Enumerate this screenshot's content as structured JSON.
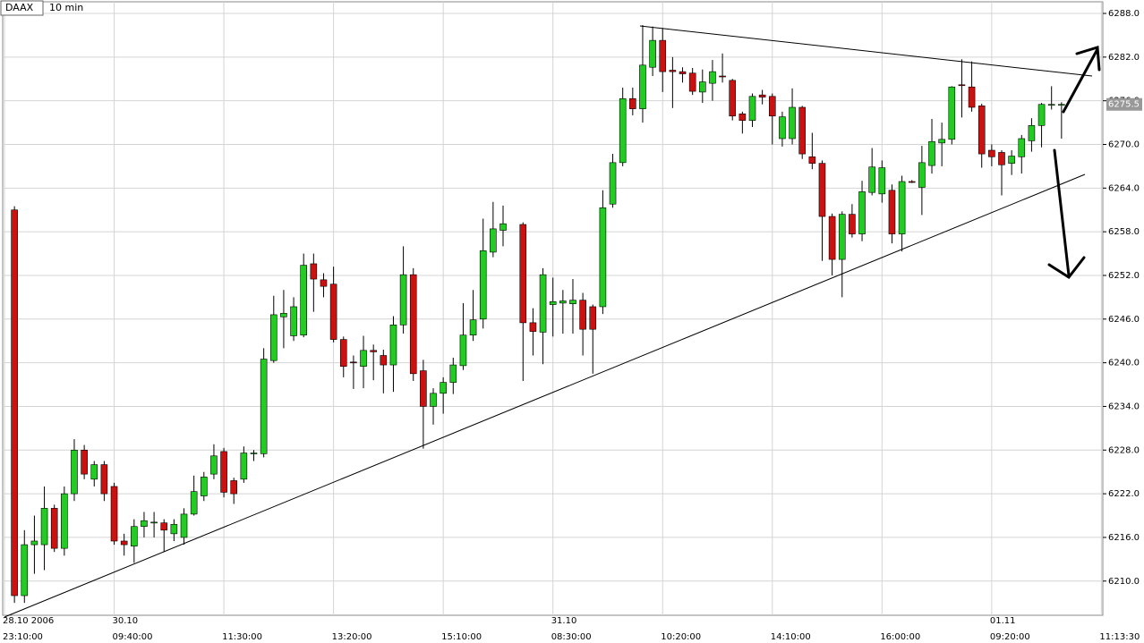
{
  "header": {
    "symbol": "DAAX",
    "interval": "10 min"
  },
  "chart_data": {
    "type": "candlestick",
    "categories": [
      "23:10:00",
      null,
      null,
      null,
      null,
      null,
      null,
      null,
      null,
      null,
      null,
      "09:40:00",
      null,
      null,
      null,
      null,
      null,
      null,
      null,
      null,
      null,
      null,
      "11:30:00",
      null,
      null,
      null,
      null,
      null,
      null,
      null,
      null,
      null,
      null,
      "13:20:00",
      null,
      null,
      null,
      null,
      null,
      null,
      null,
      null,
      null,
      null,
      "15:10:00",
      null,
      null,
      null,
      null,
      null,
      null,
      null,
      null,
      null,
      null,
      "08:30:00",
      null,
      null,
      null,
      null,
      null,
      null,
      null,
      null,
      null,
      null,
      "10:20:00",
      null,
      null,
      null,
      null,
      null,
      null,
      null,
      null,
      null,
      null,
      "14:10:00",
      null,
      null,
      null,
      null,
      null,
      null,
      null,
      null,
      null,
      null,
      "16:00:00",
      null,
      null,
      null,
      null,
      null,
      null,
      null,
      null,
      null,
      null,
      "09:20:00",
      null,
      null,
      null,
      null,
      null,
      null,
      null,
      null,
      null,
      null,
      "11:13:30"
    ],
    "dates": [
      "28.10 2006",
      null,
      null,
      null,
      null,
      null,
      null,
      null,
      null,
      null,
      null,
      "30.10",
      null,
      null,
      null,
      null,
      null,
      null,
      null,
      null,
      null,
      null,
      null,
      null,
      null,
      null,
      null,
      null,
      null,
      null,
      null,
      null,
      null,
      null,
      null,
      null,
      null,
      null,
      null,
      null,
      null,
      null,
      null,
      null,
      null,
      null,
      null,
      null,
      null,
      null,
      null,
      null,
      null,
      null,
      null,
      "31.10",
      null,
      null,
      null,
      null,
      null,
      null,
      null,
      null,
      null,
      null,
      null,
      null,
      null,
      null,
      null,
      null,
      null,
      null,
      null,
      null,
      null,
      null,
      null,
      null,
      null,
      null,
      null,
      null,
      null,
      null,
      null,
      null,
      null,
      null,
      null,
      null,
      null,
      null,
      null,
      null,
      null,
      null,
      null,
      "01.11",
      null,
      null,
      null,
      null,
      null,
      null,
      null,
      null,
      null,
      null,
      null
    ],
    "open": [
      null,
      6261,
      6208,
      6215,
      6215,
      6220,
      6214.5,
      6222,
      6228,
      6224,
      6226,
      6223,
      6215.5,
      6214.8,
      6217.5,
      6218,
      6218,
      6216.5,
      6216,
      6219.2,
      6221.7,
      6224.7,
      6227.8,
      6223.8,
      6224,
      6227.5,
      6227.5,
      6240.3,
      6246.3,
      6243.7,
      6243.8,
      6253.6,
      6251.4,
      6250.8,
      6243.2,
      6240.1,
      6239.5,
      6241.7,
      6241,
      6239.7,
      6245.2,
      6252.1,
      6238.9,
      6234,
      6235.8,
      6237.3,
      6239.6,
      6243.8,
      6246,
      6255.2,
      6258.2,
      null,
      6259,
      6245.5,
      6244.2,
      6248,
      6248.2,
      6248.1,
      6248.6,
      6247.7,
      6247.7,
      6261.8,
      6267.5,
      6276.3,
      6274.9,
      6280.6,
      6284.3,
      6280.2,
      6280,
      6279.8,
      6277.2,
      6278.4,
      6279.4,
      6278.8,
      6274.2,
      6273.3,
      6276.8,
      6276.6,
      6270.8,
      6270.8,
      6275.1,
      6268.3,
      6267.4,
      6260.1,
      6254.2,
      6260.4,
      6257.7,
      6263.4,
      6263.2,
      6263.7,
      6257.7,
      6264.9,
      6264.1,
      6267.1,
      6270.2,
      6270.7,
      6278.2,
      6277.9,
      6275.3,
      6269.2,
      6268.9,
      6267.4,
      6268.3,
      6270.5,
      6272.6,
      6275.4,
      6275.5,
      null,
      null,
      null,
      null
    ],
    "high": [
      null,
      6261.5,
      6217,
      6219,
      6223,
      6220.5,
      6223,
      6229.5,
      6228.7,
      6226.5,
      6226.5,
      6223.5,
      6216.5,
      6218.5,
      6219.5,
      6219.5,
      6218.5,
      6218.5,
      6220,
      6224.5,
      6225,
      6228.8,
      6228.3,
      6224.2,
      6228.5,
      6228,
      6242,
      6249.2,
      6250,
      6249,
      6255,
      6255,
      6252.3,
      6253.2,
      6243.6,
      6241,
      6243.7,
      6242.5,
      6241.8,
      6246.4,
      6256,
      6253,
      6240.4,
      6236.5,
      6238,
      6240.7,
      6248.2,
      6250,
      6259.8,
      6262.1,
      6261.6,
      null,
      6259.3,
      6247.5,
      6253,
      6251.7,
      6250,
      6251.5,
      6249.6,
      6248,
      6263.7,
      6268.7,
      6277.8,
      6277.8,
      6286.4,
      6286.2,
      6286,
      6282,
      6280.6,
      6280.5,
      6280.3,
      6281.6,
      6282.5,
      6279,
      6274.5,
      6277,
      6277.5,
      6277,
      6274.5,
      6277.7,
      6275.3,
      6271.6,
      6267.8,
      6260.5,
      6260.8,
      6261.8,
      6265,
      6269.5,
      6267.8,
      6264.5,
      6265.7,
      6265.1,
      6269.8,
      6273.5,
      6273,
      6278,
      6281.7,
      6281.4,
      6275.6,
      6270,
      6269.2,
      6269.2,
      6271.3,
      6273.6,
      6275.7,
      6278,
      6275.8,
      null,
      null,
      null,
      null
    ],
    "low": [
      null,
      6207,
      6207,
      6211,
      6211.5,
      6214,
      6213.5,
      6221,
      6224,
      6223,
      6221,
      6215,
      6213.5,
      6212.5,
      6216,
      6216,
      6214,
      6215.5,
      6215,
      6219,
      6221,
      6224,
      6221.5,
      6220.6,
      6223.5,
      6226.5,
      6227,
      6240,
      6242,
      6243,
      6243.5,
      6247,
      6249,
      6242.8,
      6238,
      6236.4,
      6236.5,
      6237.6,
      6235.8,
      6236,
      6244,
      6237.5,
      6228.2,
      6231.5,
      6233,
      6235.7,
      6239,
      6243,
      6244.7,
      6254.5,
      6256,
      null,
      6237.5,
      6241,
      6239.8,
      6243.6,
      6244,
      6244,
      6241,
      6238.5,
      6246.7,
      6261.3,
      6267,
      6274,
      6273,
      6279.4,
      6277.2,
      6275,
      6278.5,
      6276.8,
      6275.7,
      6276,
      6278.5,
      6273.3,
      6271.5,
      6272.4,
      6275.5,
      6270,
      6269.7,
      6270,
      6268,
      6266.6,
      6254,
      6252,
      6249,
      6257.2,
      6256.7,
      6263,
      6262,
      6256.4,
      6255.3,
      6264.7,
      6260.3,
      6266,
      6267,
      6270,
      6273.7,
      6274.5,
      6266.8,
      6267,
      6263,
      6265.8,
      6266,
      6269,
      6269.6,
      6274.8,
      6270.8,
      null,
      null,
      null,
      null
    ],
    "close": [
      null,
      6208,
      6215,
      6215.5,
      6220,
      6214.5,
      6222,
      6228,
      6224.7,
      6226,
      6222,
      6215.5,
      6215,
      6217.5,
      6218.3,
      6218.1,
      6217,
      6217.8,
      6219.2,
      6222.3,
      6224.3,
      6227.2,
      6222.2,
      6222,
      6227.6,
      6227.6,
      6240.5,
      6246.6,
      6246.8,
      6247.7,
      6253.4,
      6251.5,
      6250.5,
      6243.2,
      6239.5,
      6240,
      6241.7,
      6241.5,
      6239.7,
      6245.2,
      6252.1,
      6238.5,
      6234,
      6235.8,
      6237.3,
      6239.7,
      6243.8,
      6245.9,
      6255.4,
      6258.4,
      6259.1,
      null,
      6245.5,
      6244.3,
      6252.1,
      6248.4,
      6248.5,
      6248.6,
      6244.6,
      6244.6,
      6261.3,
      6267.5,
      6276.3,
      6274.9,
      6280.9,
      6284.3,
      6280,
      6280,
      6279.7,
      6277.3,
      6278.6,
      6280,
      6279.3,
      6273.9,
      6273.3,
      6276.6,
      6276.5,
      6273.9,
      6273.8,
      6275.1,
      6268.7,
      6267.4,
      6260.1,
      6254.2,
      6260.4,
      6257.7,
      6263.5,
      6266.9,
      6266.8,
      6257.7,
      6264.9,
      6264.8,
      6267.5,
      6270.4,
      6270.7,
      6277.9,
      6278.1,
      6275.1,
      6268.7,
      6268.3,
      6267.2,
      6268.4,
      6270.8,
      6272.6,
      6275.5,
      6275.5,
      6275.5,
      null,
      null,
      null,
      null
    ],
    "up_color": "#22cc22",
    "down_color": "#cc1111",
    "ylim": [
      6205.3,
      6289.6
    ],
    "yticks": [
      {
        "value": 6210,
        "label": "6210.0"
      },
      {
        "value": 6216,
        "label": "6216.0"
      },
      {
        "value": 6222,
        "label": "6222.0"
      },
      {
        "value": 6228,
        "label": "6228.0"
      },
      {
        "value": 6234,
        "label": "6234.0"
      },
      {
        "value": 6240,
        "label": "6240.0"
      },
      {
        "value": 6246,
        "label": "6246.0"
      },
      {
        "value": 6252,
        "label": "6252.0"
      },
      {
        "value": 6258,
        "label": "6258.0"
      },
      {
        "value": 6264,
        "label": "6264.0"
      },
      {
        "value": 6270,
        "label": "6270.0"
      },
      {
        "value": 6276,
        "label": "6276.0"
      },
      {
        "value": 6282,
        "label": "6282.0"
      },
      {
        "value": 6288,
        "label": "6288.0"
      }
    ],
    "last_price": 6275.5,
    "grid": true
  }
}
